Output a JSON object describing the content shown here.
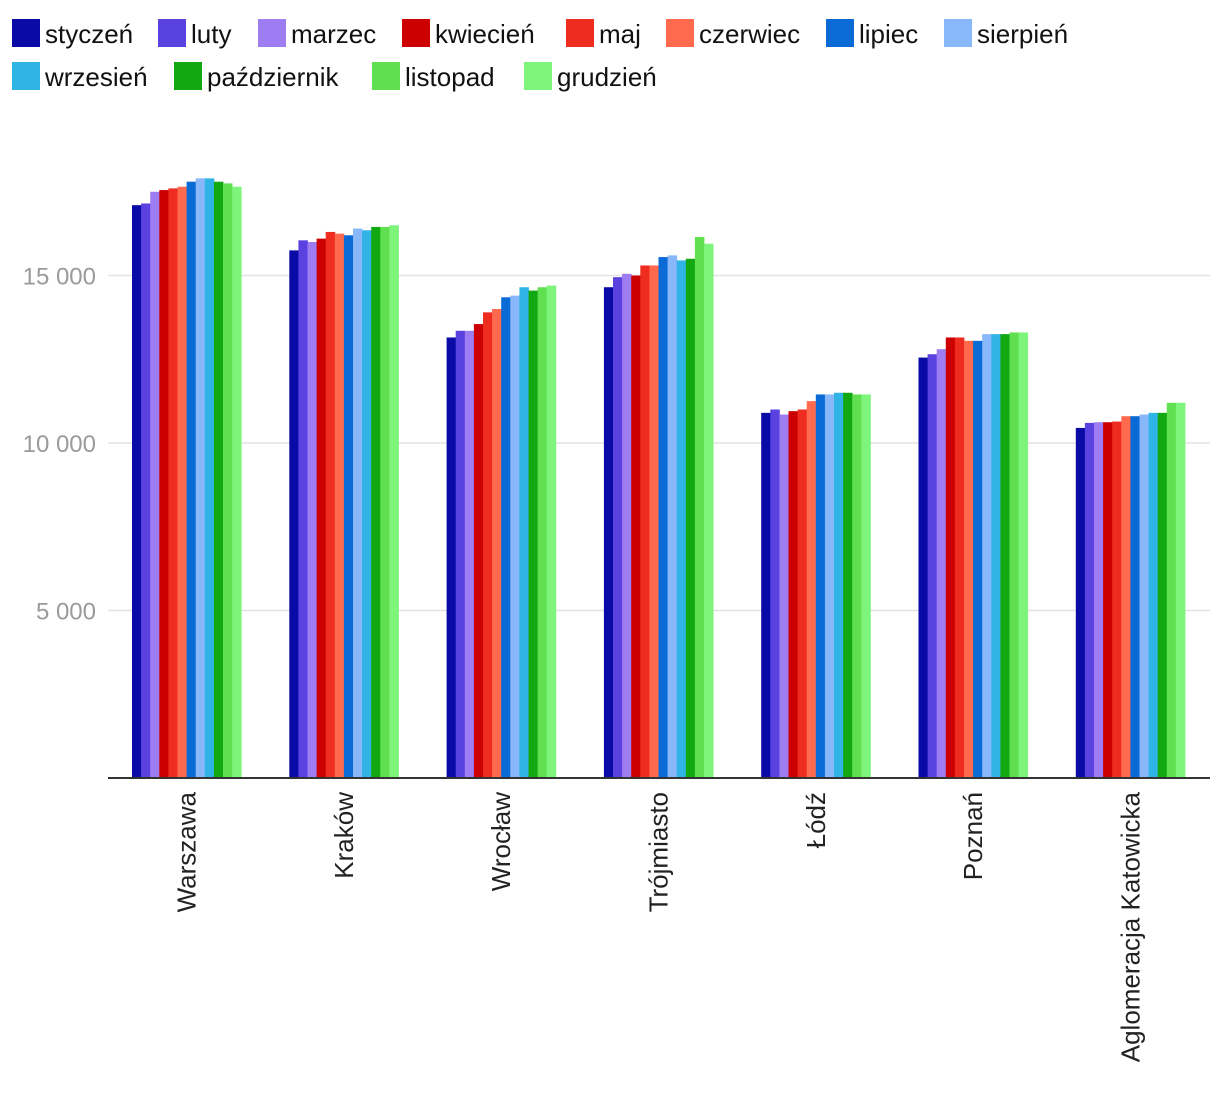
{
  "chart_data": {
    "type": "bar",
    "title": "",
    "xlabel": "",
    "ylabel": "",
    "ylim": [
      0,
      18500
    ],
    "yticks": [
      {
        "value": 5000,
        "label": "5 000"
      },
      {
        "value": 10000,
        "label": "10 000"
      },
      {
        "value": 15000,
        "label": "15 000"
      }
    ],
    "grid": true,
    "legend_position": "top",
    "categories": [
      "Warszawa",
      "Kraków",
      "Wrocław",
      "Trójmiasto",
      "Łódź",
      "Poznań",
      "Aglomeracja Katowicka"
    ],
    "series": [
      {
        "name": "styczeń",
        "color": "#0a0aa6",
        "values": [
          17100,
          15750,
          13150,
          14650,
          10900,
          12550,
          10450
        ]
      },
      {
        "name": "luty",
        "color": "#5a42e0",
        "values": [
          17150,
          16050,
          13350,
          14950,
          11000,
          12650,
          10600
        ]
      },
      {
        "name": "marzec",
        "color": "#9e7cf2",
        "values": [
          17500,
          16000,
          13350,
          15050,
          10850,
          12800,
          10620
        ]
      },
      {
        "name": "kwiecień",
        "color": "#cc0000",
        "values": [
          17550,
          16100,
          13550,
          15000,
          10950,
          13150,
          10620
        ]
      },
      {
        "name": "maj",
        "color": "#ee2c20",
        "values": [
          17600,
          16300,
          13900,
          15300,
          11000,
          13150,
          10640
        ]
      },
      {
        "name": "czerwiec",
        "color": "#ff6a4e",
        "values": [
          17650,
          16250,
          14000,
          15300,
          11250,
          13050,
          10800
        ]
      },
      {
        "name": "lipiec",
        "color": "#0a6ad6",
        "values": [
          17800,
          16200,
          14350,
          15550,
          11450,
          13050,
          10800
        ]
      },
      {
        "name": "sierpień",
        "color": "#88b8fa",
        "values": [
          17900,
          16400,
          14400,
          15600,
          11450,
          13250,
          10850
        ]
      },
      {
        "name": "wrzesień",
        "color": "#30b4e6",
        "values": [
          17900,
          16350,
          14650,
          15450,
          11500,
          13250,
          10900
        ]
      },
      {
        "name": "październik",
        "color": "#12a812",
        "values": [
          17800,
          16450,
          14550,
          15500,
          11500,
          13250,
          10900
        ]
      },
      {
        "name": "listopad",
        "color": "#60e050",
        "values": [
          17750,
          16450,
          14650,
          16150,
          11450,
          13300,
          11200
        ]
      },
      {
        "name": "grudzień",
        "color": "#7ef47a",
        "values": [
          17650,
          16500,
          14700,
          15950,
          11450,
          13300,
          11200
        ]
      }
    ]
  }
}
